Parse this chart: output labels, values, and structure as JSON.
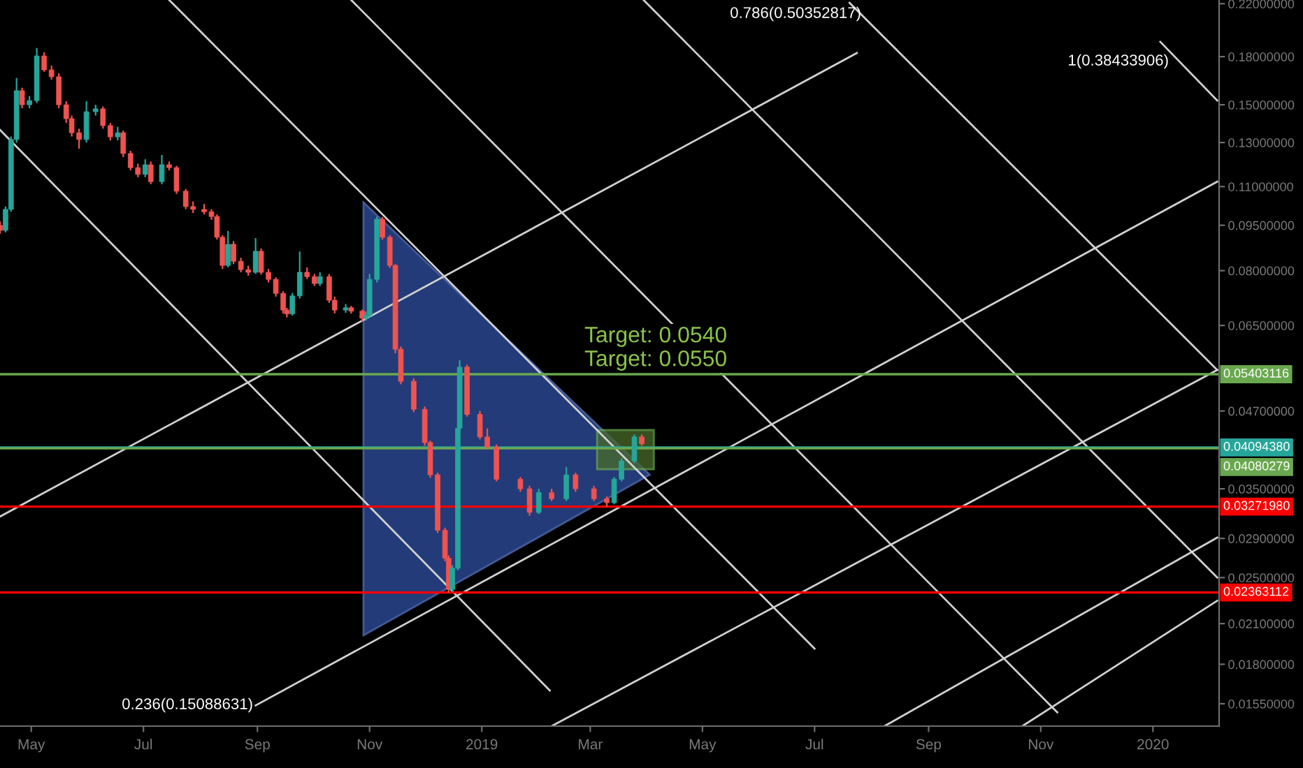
{
  "chart_data": {
    "type": "candlestick",
    "x": [
      "2018-04-14",
      "2018-04-17",
      "2018-04-20",
      "2018-04-23",
      "2018-04-26",
      "2018-04-30",
      "2018-05-04",
      "2018-05-08",
      "2018-05-12",
      "2018-05-16",
      "2018-05-20",
      "2018-05-23",
      "2018-05-27",
      "2018-05-31",
      "2018-06-05",
      "2018-06-09",
      "2018-06-13",
      "2018-06-17",
      "2018-06-20",
      "2018-06-24",
      "2018-06-28",
      "2018-07-02",
      "2018-07-05",
      "2018-07-11",
      "2018-07-15",
      "2018-07-19",
      "2018-07-24",
      "2018-07-28",
      "2018-08-03",
      "2018-08-07",
      "2018-08-10",
      "2018-08-13",
      "2018-08-16",
      "2018-08-19",
      "2018-08-23",
      "2018-08-27",
      "2018-08-31",
      "2018-09-03",
      "2018-09-07",
      "2018-09-11",
      "2018-09-15",
      "2018-09-17",
      "2018-09-20",
      "2018-09-24",
      "2018-09-28",
      "2018-10-02",
      "2018-10-05",
      "2018-10-10",
      "2018-10-13",
      "2018-10-19",
      "2018-10-22",
      "2018-10-28",
      "2018-10-30",
      "2018-11-01",
      "2018-11-05",
      "2018-11-08",
      "2018-11-12",
      "2018-11-15",
      "2018-11-18",
      "2018-11-25",
      "2018-12-01",
      "2018-12-04",
      "2018-12-08",
      "2018-12-12",
      "2018-12-14",
      "2018-12-16",
      "2018-12-19",
      "2018-12-20",
      "2018-12-24",
      "2018-12-31",
      "2019-01-04",
      "2019-01-09",
      "2019-01-22",
      "2019-01-27",
      "2019-02-01",
      "2019-02-08",
      "2019-02-16",
      "2019-02-21",
      "2019-03-03",
      "2019-03-10",
      "2019-03-14",
      "2019-03-18",
      "2019-03-25",
      "2019-03-29"
    ],
    "ohlc": [
      [
        0.095,
        0.0965,
        0.092,
        0.0932
      ],
      [
        0.0932,
        0.102,
        0.0925,
        0.1009
      ],
      [
        0.1009,
        0.133,
        0.1,
        0.1315
      ],
      [
        0.1315,
        0.166,
        0.13,
        0.1582
      ],
      [
        0.1582,
        0.16,
        0.148,
        0.15
      ],
      [
        0.15,
        0.155,
        0.148,
        0.1524
      ],
      [
        0.1524,
        0.186,
        0.151,
        0.1805
      ],
      [
        0.1805,
        0.183,
        0.17,
        0.1712
      ],
      [
        0.1712,
        0.174,
        0.165,
        0.1668
      ],
      [
        0.1668,
        0.169,
        0.148,
        0.15
      ],
      [
        0.15,
        0.152,
        0.14,
        0.1423
      ],
      [
        0.1423,
        0.144,
        0.133,
        0.1349
      ],
      [
        0.1349,
        0.137,
        0.127,
        0.1315
      ],
      [
        0.1315,
        0.152,
        0.13,
        0.1461
      ],
      [
        0.1461,
        0.15,
        0.144,
        0.1477
      ],
      [
        0.1477,
        0.149,
        0.137,
        0.1386
      ],
      [
        0.1386,
        0.14,
        0.131,
        0.1328
      ],
      [
        0.1328,
        0.138,
        0.131,
        0.1349
      ],
      [
        0.1349,
        0.136,
        0.123,
        0.1247
      ],
      [
        0.1247,
        0.126,
        0.117,
        0.1182
      ],
      [
        0.1182,
        0.12,
        0.114,
        0.1152
      ],
      [
        0.1152,
        0.122,
        0.114,
        0.1195
      ],
      [
        0.1195,
        0.121,
        0.111,
        0.1121
      ],
      [
        0.1121,
        0.124,
        0.111,
        0.1195
      ],
      [
        0.1195,
        0.121,
        0.117,
        0.1182
      ],
      [
        0.1182,
        0.119,
        0.107,
        0.1081
      ],
      [
        0.1081,
        0.109,
        0.101,
        0.102
      ],
      [
        0.102,
        0.104,
        0.0995,
        0.1009
      ],
      [
        0.1009,
        0.103,
        0.099,
        0.1
      ],
      [
        0.1,
        0.101,
        0.097,
        0.0982
      ],
      [
        0.0982,
        0.099,
        0.09,
        0.0908
      ],
      [
        0.0908,
        0.0915,
        0.0805,
        0.0816
      ],
      [
        0.0816,
        0.093,
        0.081,
        0.0884
      ],
      [
        0.0884,
        0.0895,
        0.082,
        0.0829
      ],
      [
        0.0829,
        0.084,
        0.0795,
        0.0803
      ],
      [
        0.0803,
        0.0815,
        0.0785,
        0.0795
      ],
      [
        0.0795,
        0.0905,
        0.079,
        0.0861
      ],
      [
        0.0861,
        0.087,
        0.0788,
        0.0795
      ],
      [
        0.0795,
        0.0805,
        0.0765,
        0.0774
      ],
      [
        0.0774,
        0.078,
        0.0725,
        0.0734
      ],
      [
        0.0734,
        0.074,
        0.068,
        0.0689
      ],
      [
        0.0689,
        0.0695,
        0.067,
        0.0679
      ],
      [
        0.0679,
        0.0735,
        0.0675,
        0.0727
      ],
      [
        0.0727,
        0.086,
        0.072,
        0.0795
      ],
      [
        0.0795,
        0.081,
        0.0775,
        0.0782
      ],
      [
        0.0782,
        0.079,
        0.0755,
        0.0762
      ],
      [
        0.0762,
        0.0795,
        0.0755,
        0.0782
      ],
      [
        0.0782,
        0.079,
        0.0708,
        0.0715
      ],
      [
        0.0715,
        0.0725,
        0.068,
        0.0689
      ],
      [
        0.0689,
        0.0705,
        0.0682,
        0.0695
      ],
      [
        0.0695,
        0.07,
        0.068,
        0.0686
      ],
      [
        0.0686,
        0.069,
        0.066,
        0.0668
      ],
      [
        0.0668,
        0.0685,
        0.0662,
        0.0675
      ],
      [
        0.0675,
        0.079,
        0.067,
        0.0774
      ],
      [
        0.0774,
        0.0982,
        0.0765,
        0.0972
      ],
      [
        0.0972,
        0.098,
        0.09,
        0.0908
      ],
      [
        0.0908,
        0.0915,
        0.0808,
        0.0816
      ],
      [
        0.0816,
        0.082,
        0.0585,
        0.0594
      ],
      [
        0.0594,
        0.06,
        0.052,
        0.0526
      ],
      [
        0.0526,
        0.0532,
        0.0468,
        0.0473
      ],
      [
        0.0473,
        0.0478,
        0.0412,
        0.0417
      ],
      [
        0.0417,
        0.042,
        0.0365,
        0.0369
      ],
      [
        0.0369,
        0.0372,
        0.0296,
        0.0299
      ],
      [
        0.0299,
        0.0302,
        0.0266,
        0.0269
      ],
      [
        0.0269,
        0.0272,
        0.0236,
        0.0239
      ],
      [
        0.0239,
        0.0262,
        0.0237,
        0.0259
      ],
      [
        0.0259,
        0.0445,
        0.0257,
        0.044
      ],
      [
        0.044,
        0.057,
        0.0436,
        0.0555
      ],
      [
        0.0555,
        0.056,
        0.046,
        0.0464
      ],
      [
        0.0464,
        0.047,
        0.0422,
        0.0426
      ],
      [
        0.0426,
        0.044,
        0.0406,
        0.041
      ],
      [
        0.041,
        0.0414,
        0.036,
        0.0363
      ],
      [
        0.0363,
        0.0366,
        0.0346,
        0.035
      ],
      [
        0.035,
        0.0354,
        0.0316,
        0.032
      ],
      [
        0.032,
        0.035,
        0.0318,
        0.0345
      ],
      [
        0.0345,
        0.035,
        0.0334,
        0.0337
      ],
      [
        0.0337,
        0.038,
        0.0334,
        0.0369
      ],
      [
        0.0369,
        0.0372,
        0.0346,
        0.035
      ],
      [
        0.035,
        0.0354,
        0.0334,
        0.0337
      ],
      [
        0.0337,
        0.034,
        0.0327,
        0.0332
      ],
      [
        0.0332,
        0.0366,
        0.033,
        0.0363
      ],
      [
        0.0363,
        0.0393,
        0.036,
        0.0389
      ],
      [
        0.0389,
        0.043,
        0.0386,
        0.0426
      ],
      [
        0.0426,
        0.043,
        0.0412,
        0.0415
      ]
    ],
    "series": [
      {
        "type": "line",
        "color": "#d0d0d0",
        "x": [
          "2018-04-14",
          "2019-02-07"
        ],
        "values": [
          0.1364,
          0.0163
        ]
      },
      {
        "type": "line",
        "color": "#d0d0d0",
        "x": [
          "2018-07-15",
          "2019-07-01"
        ],
        "values": [
          0.2231,
          0.0191
        ]
      },
      {
        "type": "line",
        "color": "#d0d0d0",
        "x": [
          "2018-10-22",
          "2019-11-10"
        ],
        "values": [
          0.2231,
          0.015
        ]
      },
      {
        "type": "line",
        "color": "#d0d0d0",
        "x": [
          "2019-03-30",
          "2020-02-05"
        ],
        "values": [
          0.2231,
          0.025
        ]
      },
      {
        "type": "line",
        "color": "#d0d0d0",
        "x": [
          "2019-07-20",
          "2020-02-05"
        ],
        "values": [
          0.2207,
          0.0549
        ]
      },
      {
        "type": "line",
        "color": "#d0d0d0",
        "x": [
          "2020-01-05",
          "2020-02-05"
        ],
        "values": [
          0.1904,
          0.1524
        ]
      },
      {
        "type": "line",
        "color": "#d0d0d0",
        "x": [
          "2018-04-14",
          "2019-07-24"
        ],
        "values": [
          0.0315,
          0.1825
        ]
      },
      {
        "type": "line",
        "color": "#d0d0d0",
        "x": [
          "2018-08-31",
          "2020-02-05"
        ],
        "values": [
          0.0154,
          0.1121
        ]
      },
      {
        "type": "line",
        "color": "#d0d0d0",
        "x": [
          "2019-02-08",
          "2020-02-05"
        ],
        "values": [
          0.01424,
          0.0549
        ]
      },
      {
        "type": "line",
        "color": "#d0d0d0",
        "x": [
          "2019-08-08",
          "2020-02-05"
        ],
        "values": [
          0.01424,
          0.0291
        ]
      },
      {
        "type": "line",
        "color": "#d0d0d0",
        "x": [
          "2019-10-22",
          "2020-02-05"
        ],
        "values": [
          0.01424,
          0.0229
        ]
      }
    ],
    "ref_lines": [
      {
        "axis": "y",
        "value": 0.05403116,
        "label": "0.05403116",
        "color": "#6aa84f"
      },
      {
        "axis": "y",
        "value": 0.0409438,
        "label": "0.04094380",
        "color": "#26a69a"
      },
      {
        "axis": "y",
        "value": 0.04080279,
        "label": "0.04080279",
        "color": "#6aa84f"
      },
      {
        "axis": "y",
        "value": 0.0327198,
        "label": "0.03271980",
        "color": "#ff0000"
      },
      {
        "axis": "y",
        "value": 0.02363112,
        "label": "0.02363112",
        "color": "#ff0000"
      }
    ],
    "annotations": [
      "Target: 0.0540",
      "Target: 0.0550",
      "0.236(0.15088631)",
      "0.786(0.50352817)",
      "1(0.38433906)"
    ],
    "log": "y",
    "xlim": [
      "2018-04-14",
      "2020-02-06"
    ],
    "xticks": [
      {
        "value": "2018-05-01",
        "label": "May"
      },
      {
        "value": "2018-07-01",
        "label": "Jul"
      },
      {
        "value": "2018-09-01",
        "label": "Sep"
      },
      {
        "value": "2018-11-01",
        "label": "Nov"
      },
      {
        "value": "2019-01-01",
        "label": "2019"
      },
      {
        "value": "2019-03-01",
        "label": "Mar"
      },
      {
        "value": "2019-05-01",
        "label": "May"
      },
      {
        "value": "2019-07-01",
        "label": "Jul"
      },
      {
        "value": "2019-09-01",
        "label": "Sep"
      },
      {
        "value": "2019-11-01",
        "label": "Nov"
      },
      {
        "value": "2020-01-01",
        "label": "2020"
      }
    ],
    "ylim": [
      0.01424,
      0.2231
    ],
    "yticks": [
      {
        "value": 0.22,
        "label": "0.22000000"
      },
      {
        "value": 0.18,
        "label": "0.18000000"
      },
      {
        "value": 0.15,
        "label": "0.15000000"
      },
      {
        "value": 0.13,
        "label": "0.13000000"
      },
      {
        "value": 0.11,
        "label": "0.11000000"
      },
      {
        "value": 0.095,
        "label": "0.09500000"
      },
      {
        "value": 0.08,
        "label": "0.08000000"
      },
      {
        "value": 0.065,
        "label": "0.06500000"
      },
      {
        "value": 0.047,
        "label": "0.04700000"
      },
      {
        "value": 0.035,
        "label": "0.03500000"
      },
      {
        "value": 0.029,
        "label": "0.02900000"
      },
      {
        "value": 0.025,
        "label": "0.02500000"
      },
      {
        "value": 0.021,
        "label": "0.02100000"
      },
      {
        "value": 0.018,
        "label": "0.01800000"
      },
      {
        "value": 0.0155,
        "label": "0.01550000"
      }
    ],
    "grid": false,
    "legend": false
  }
}
